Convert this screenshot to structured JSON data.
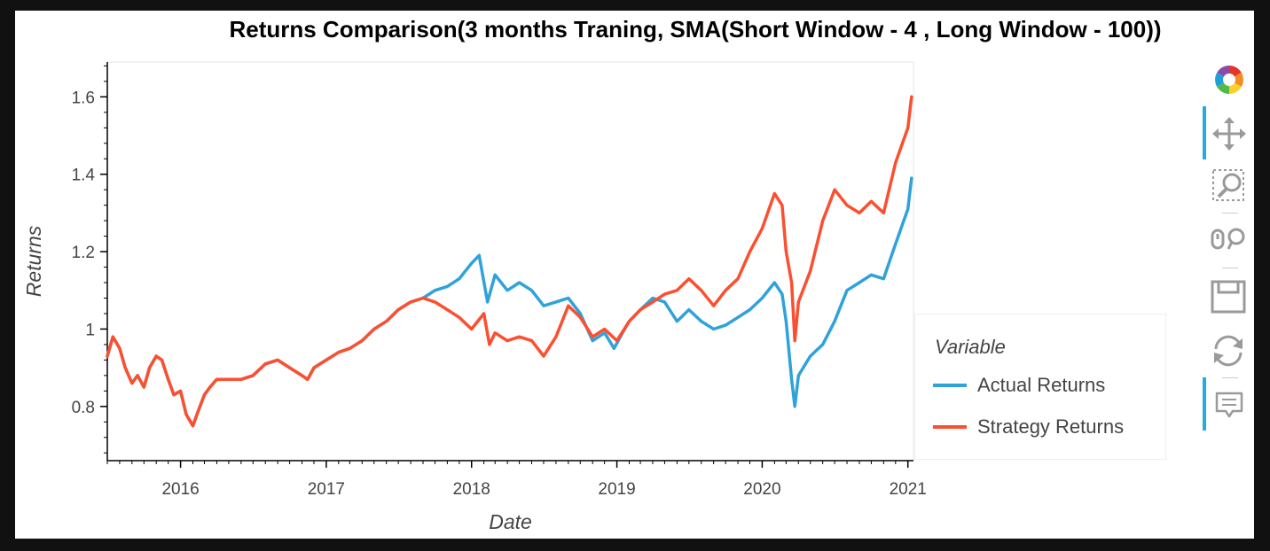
{
  "chart_data": {
    "type": "line",
    "title": "Returns Comparison(3 months Traning, SMA(Short Window - 4 , Long Window - 100))",
    "xlabel": "Date",
    "ylabel": "Returns",
    "x_ticks": [
      "2016",
      "2017",
      "2018",
      "2019",
      "2020",
      "2021"
    ],
    "y_ticks": [
      "0.8",
      "1",
      "1.2",
      "1.4",
      "1.6"
    ],
    "xlim": [
      "2015-07-01",
      "2021-01-15"
    ],
    "ylim": [
      0.66,
      1.69
    ],
    "grid": false,
    "legend": {
      "title": "Variable",
      "placement": "right"
    },
    "series": [
      {
        "name": "Actual Returns",
        "color": "#30a2da",
        "points": [
          [
            "2015-07-01",
            0.93
          ],
          [
            "2015-07-15",
            0.98
          ],
          [
            "2015-08-01",
            0.95
          ],
          [
            "2015-08-15",
            0.9
          ],
          [
            "2015-09-01",
            0.86
          ],
          [
            "2015-09-15",
            0.88
          ],
          [
            "2015-10-01",
            0.85
          ],
          [
            "2015-10-15",
            0.9
          ],
          [
            "2015-11-01",
            0.93
          ],
          [
            "2015-11-15",
            0.92
          ],
          [
            "2015-12-01",
            0.87
          ],
          [
            "2015-12-15",
            0.83
          ],
          [
            "2016-01-01",
            0.84
          ],
          [
            "2016-01-15",
            0.78
          ],
          [
            "2016-02-01",
            0.75
          ],
          [
            "2016-02-15",
            0.79
          ],
          [
            "2016-03-01",
            0.83
          ],
          [
            "2016-03-15",
            0.85
          ],
          [
            "2016-04-01",
            0.87
          ],
          [
            "2016-05-01",
            0.87
          ],
          [
            "2016-06-01",
            0.87
          ],
          [
            "2016-07-01",
            0.88
          ],
          [
            "2016-08-01",
            0.91
          ],
          [
            "2016-09-01",
            0.92
          ],
          [
            "2016-10-01",
            0.9
          ],
          [
            "2016-11-01",
            0.88
          ],
          [
            "2016-11-15",
            0.87
          ],
          [
            "2016-12-01",
            0.9
          ],
          [
            "2017-01-01",
            0.92
          ],
          [
            "2017-02-01",
            0.94
          ],
          [
            "2017-03-01",
            0.95
          ],
          [
            "2017-04-01",
            0.97
          ],
          [
            "2017-05-01",
            1.0
          ],
          [
            "2017-06-01",
            1.02
          ],
          [
            "2017-07-01",
            1.05
          ],
          [
            "2017-08-01",
            1.07
          ],
          [
            "2017-09-01",
            1.08
          ],
          [
            "2017-10-01",
            1.1
          ],
          [
            "2017-11-01",
            1.11
          ],
          [
            "2017-12-01",
            1.13
          ],
          [
            "2018-01-01",
            1.17
          ],
          [
            "2018-01-20",
            1.19
          ],
          [
            "2018-02-10",
            1.07
          ],
          [
            "2018-03-01",
            1.14
          ],
          [
            "2018-04-01",
            1.1
          ],
          [
            "2018-05-01",
            1.12
          ],
          [
            "2018-06-01",
            1.1
          ],
          [
            "2018-07-01",
            1.06
          ],
          [
            "2018-08-01",
            1.07
          ],
          [
            "2018-09-01",
            1.08
          ],
          [
            "2018-10-01",
            1.04
          ],
          [
            "2018-11-01",
            0.97
          ],
          [
            "2018-12-01",
            0.99
          ],
          [
            "2018-12-25",
            0.95
          ],
          [
            "2019-01-15",
            0.99
          ],
          [
            "2019-02-01",
            1.02
          ],
          [
            "2019-03-01",
            1.05
          ],
          [
            "2019-04-01",
            1.08
          ],
          [
            "2019-05-01",
            1.07
          ],
          [
            "2019-06-01",
            1.02
          ],
          [
            "2019-07-01",
            1.05
          ],
          [
            "2019-08-01",
            1.02
          ],
          [
            "2019-09-01",
            1.0
          ],
          [
            "2019-10-01",
            1.01
          ],
          [
            "2019-11-01",
            1.03
          ],
          [
            "2019-12-01",
            1.05
          ],
          [
            "2020-01-01",
            1.08
          ],
          [
            "2020-02-01",
            1.12
          ],
          [
            "2020-02-20",
            1.09
          ],
          [
            "2020-03-01",
            1.02
          ],
          [
            "2020-03-15",
            0.87
          ],
          [
            "2020-03-23",
            0.8
          ],
          [
            "2020-04-01",
            0.88
          ],
          [
            "2020-05-01",
            0.93
          ],
          [
            "2020-06-01",
            0.96
          ],
          [
            "2020-07-01",
            1.02
          ],
          [
            "2020-08-01",
            1.1
          ],
          [
            "2020-09-01",
            1.12
          ],
          [
            "2020-10-01",
            1.14
          ],
          [
            "2020-11-01",
            1.13
          ],
          [
            "2020-12-01",
            1.22
          ],
          [
            "2021-01-01",
            1.31
          ],
          [
            "2021-01-10",
            1.39
          ]
        ]
      },
      {
        "name": "Strategy Returns",
        "color": "#fc4f30",
        "points": [
          [
            "2015-07-01",
            0.93
          ],
          [
            "2015-07-15",
            0.98
          ],
          [
            "2015-08-01",
            0.95
          ],
          [
            "2015-08-15",
            0.9
          ],
          [
            "2015-09-01",
            0.86
          ],
          [
            "2015-09-15",
            0.88
          ],
          [
            "2015-10-01",
            0.85
          ],
          [
            "2015-10-15",
            0.9
          ],
          [
            "2015-11-01",
            0.93
          ],
          [
            "2015-11-15",
            0.92
          ],
          [
            "2015-12-01",
            0.87
          ],
          [
            "2015-12-15",
            0.83
          ],
          [
            "2016-01-01",
            0.84
          ],
          [
            "2016-01-15",
            0.78
          ],
          [
            "2016-02-01",
            0.75
          ],
          [
            "2016-02-15",
            0.79
          ],
          [
            "2016-03-01",
            0.83
          ],
          [
            "2016-03-15",
            0.85
          ],
          [
            "2016-04-01",
            0.87
          ],
          [
            "2016-05-01",
            0.87
          ],
          [
            "2016-06-01",
            0.87
          ],
          [
            "2016-07-01",
            0.88
          ],
          [
            "2016-08-01",
            0.91
          ],
          [
            "2016-09-01",
            0.92
          ],
          [
            "2016-10-01",
            0.9
          ],
          [
            "2016-11-01",
            0.88
          ],
          [
            "2016-11-15",
            0.87
          ],
          [
            "2016-12-01",
            0.9
          ],
          [
            "2017-01-01",
            0.92
          ],
          [
            "2017-02-01",
            0.94
          ],
          [
            "2017-03-01",
            0.95
          ],
          [
            "2017-04-01",
            0.97
          ],
          [
            "2017-05-01",
            1.0
          ],
          [
            "2017-06-01",
            1.02
          ],
          [
            "2017-07-01",
            1.05
          ],
          [
            "2017-08-01",
            1.07
          ],
          [
            "2017-09-01",
            1.08
          ],
          [
            "2017-10-01",
            1.07
          ],
          [
            "2017-11-01",
            1.05
          ],
          [
            "2017-12-01",
            1.03
          ],
          [
            "2018-01-01",
            1.0
          ],
          [
            "2018-02-01",
            1.04
          ],
          [
            "2018-02-15",
            0.96
          ],
          [
            "2018-03-01",
            0.99
          ],
          [
            "2018-04-01",
            0.97
          ],
          [
            "2018-05-01",
            0.98
          ],
          [
            "2018-06-01",
            0.97
          ],
          [
            "2018-07-01",
            0.93
          ],
          [
            "2018-08-01",
            0.98
          ],
          [
            "2018-09-01",
            1.06
          ],
          [
            "2018-10-01",
            1.03
          ],
          [
            "2018-11-01",
            0.98
          ],
          [
            "2018-12-01",
            1.0
          ],
          [
            "2019-01-01",
            0.97
          ],
          [
            "2019-02-01",
            1.02
          ],
          [
            "2019-03-01",
            1.05
          ],
          [
            "2019-04-01",
            1.07
          ],
          [
            "2019-05-01",
            1.09
          ],
          [
            "2019-06-01",
            1.1
          ],
          [
            "2019-07-01",
            1.13
          ],
          [
            "2019-08-01",
            1.1
          ],
          [
            "2019-09-01",
            1.06
          ],
          [
            "2019-10-01",
            1.1
          ],
          [
            "2019-11-01",
            1.13
          ],
          [
            "2019-12-01",
            1.2
          ],
          [
            "2020-01-01",
            1.26
          ],
          [
            "2020-02-01",
            1.35
          ],
          [
            "2020-02-20",
            1.32
          ],
          [
            "2020-03-01",
            1.2
          ],
          [
            "2020-03-15",
            1.12
          ],
          [
            "2020-03-23",
            0.97
          ],
          [
            "2020-04-01",
            1.07
          ],
          [
            "2020-05-01",
            1.15
          ],
          [
            "2020-06-01",
            1.28
          ],
          [
            "2020-07-01",
            1.36
          ],
          [
            "2020-08-01",
            1.32
          ],
          [
            "2020-09-01",
            1.3
          ],
          [
            "2020-10-01",
            1.33
          ],
          [
            "2020-11-01",
            1.3
          ],
          [
            "2020-12-01",
            1.43
          ],
          [
            "2021-01-01",
            1.52
          ],
          [
            "2021-01-10",
            1.6
          ]
        ]
      }
    ]
  },
  "toolbar": {
    "tools": [
      {
        "icon": "bokeh-logo-icon",
        "active": false
      },
      {
        "icon": "pan-icon",
        "active": true
      },
      {
        "icon": "box-zoom-icon",
        "active": false
      },
      {
        "icon": "wheel-zoom-icon",
        "active": false
      },
      {
        "icon": "save-icon",
        "active": false
      },
      {
        "icon": "reset-icon",
        "active": false
      },
      {
        "icon": "hover-icon",
        "active": true
      }
    ]
  }
}
